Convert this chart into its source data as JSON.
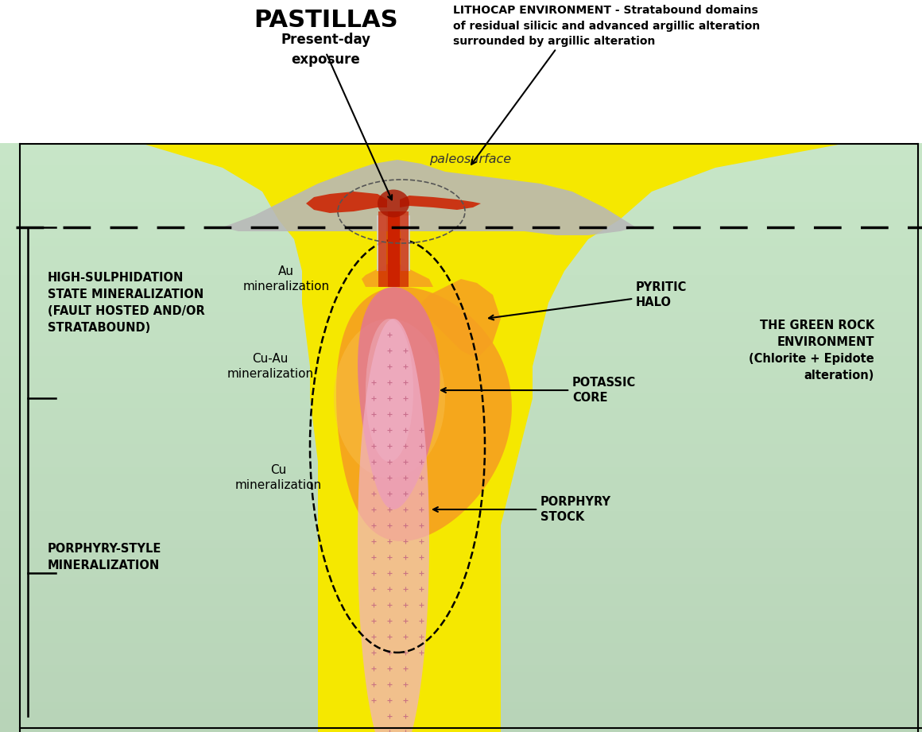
{
  "title": "PASTILLAS",
  "subtitle": "Present-day\nexposure",
  "lithocap_text": "LITHOCAP ENVIRONMENT - Stratabound domains\nof residual silicic and advanced argillic alteration\nsurrounded by argillic alteration",
  "paleosurface_text": "paleosurface",
  "high_sulph_text": "HIGH-SULPHIDATION\nSTATE MINERALIZATION\n(FAULT HOSTED AND/OR\nSTRATABOUND)",
  "green_rock_text": "THE GREEN ROCK\nENVIRONMENT\n(Chlorite + Epidote\nalteration)",
  "porphyry_style_text": "PORPHYRY-STYLE\nMINERALIZATION",
  "au_min_text": "Au\nmineralization",
  "cuau_min_text": "Cu-Au\nmineralization",
  "cu_min_text": "Cu\nmineralization",
  "pyritic_halo_text": "PYRITIC\nHALO",
  "potassic_core_text": "POTASSIC\nCORE",
  "porphyry_stock_text": "PORPHYRY\nSTOCK",
  "col_green_light": "#b8d8b8",
  "col_green_mid": "#8ab88a",
  "col_yellow": "#f5e800",
  "col_orange": "#f5a020",
  "col_orange_light": "#f8c878",
  "col_gray": "#b8b8b8",
  "col_red": "#cc2200",
  "col_pink": "#e070a0",
  "col_pink_light": "#f0b0c8",
  "col_white": "#ffffff"
}
